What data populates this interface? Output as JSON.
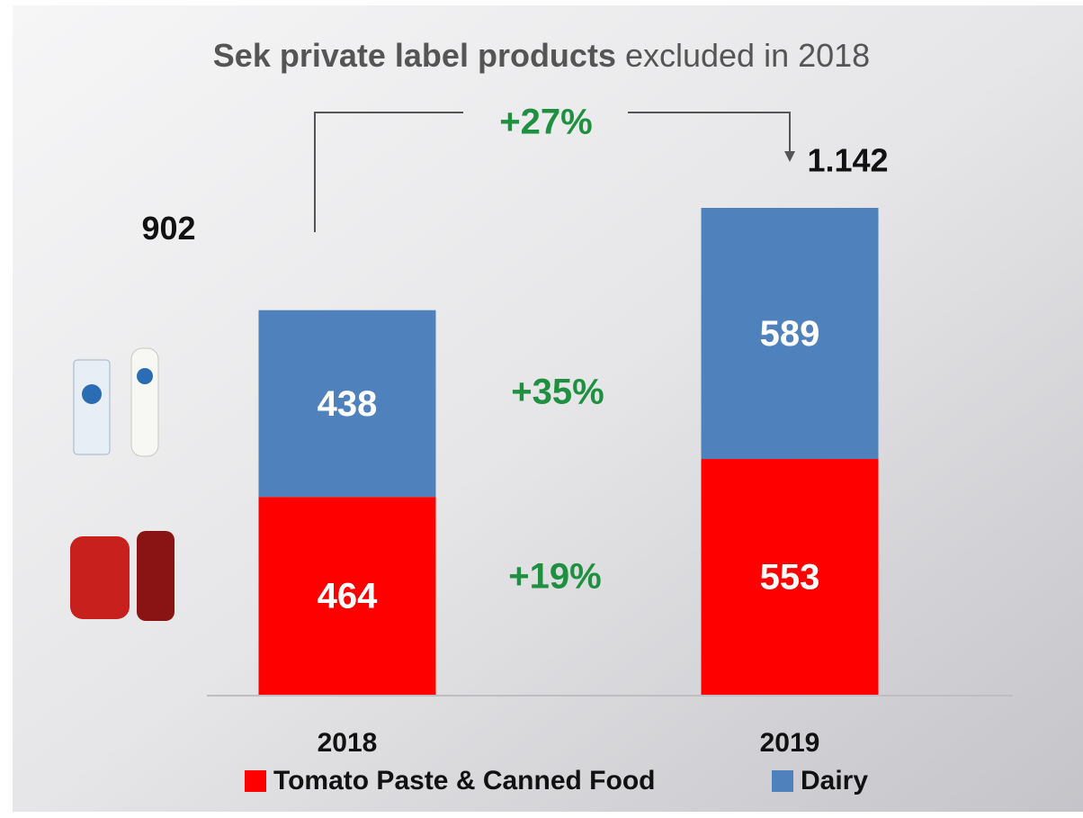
{
  "chart_data": {
    "type": "stacked_bar",
    "title": {
      "bold": "Sek private label products",
      "normal": "excluded in 2018"
    },
    "categories": [
      "2018",
      "2019"
    ],
    "series": [
      {
        "name": "Tomato Paste & Canned Food",
        "color": "#ff0000",
        "values": [
          464,
          553
        ]
      },
      {
        "name": "Dairy",
        "color": "#4f81bd",
        "values": [
          438,
          589
        ]
      }
    ],
    "totals": {
      "values": [
        902,
        1142
      ],
      "value_labels": [
        "902",
        "1.142"
      ]
    },
    "annotations": {
      "total_growth": "+27%",
      "dairy_growth": "+35%",
      "tomato_growth": "+19%"
    },
    "legend": "bottom"
  }
}
